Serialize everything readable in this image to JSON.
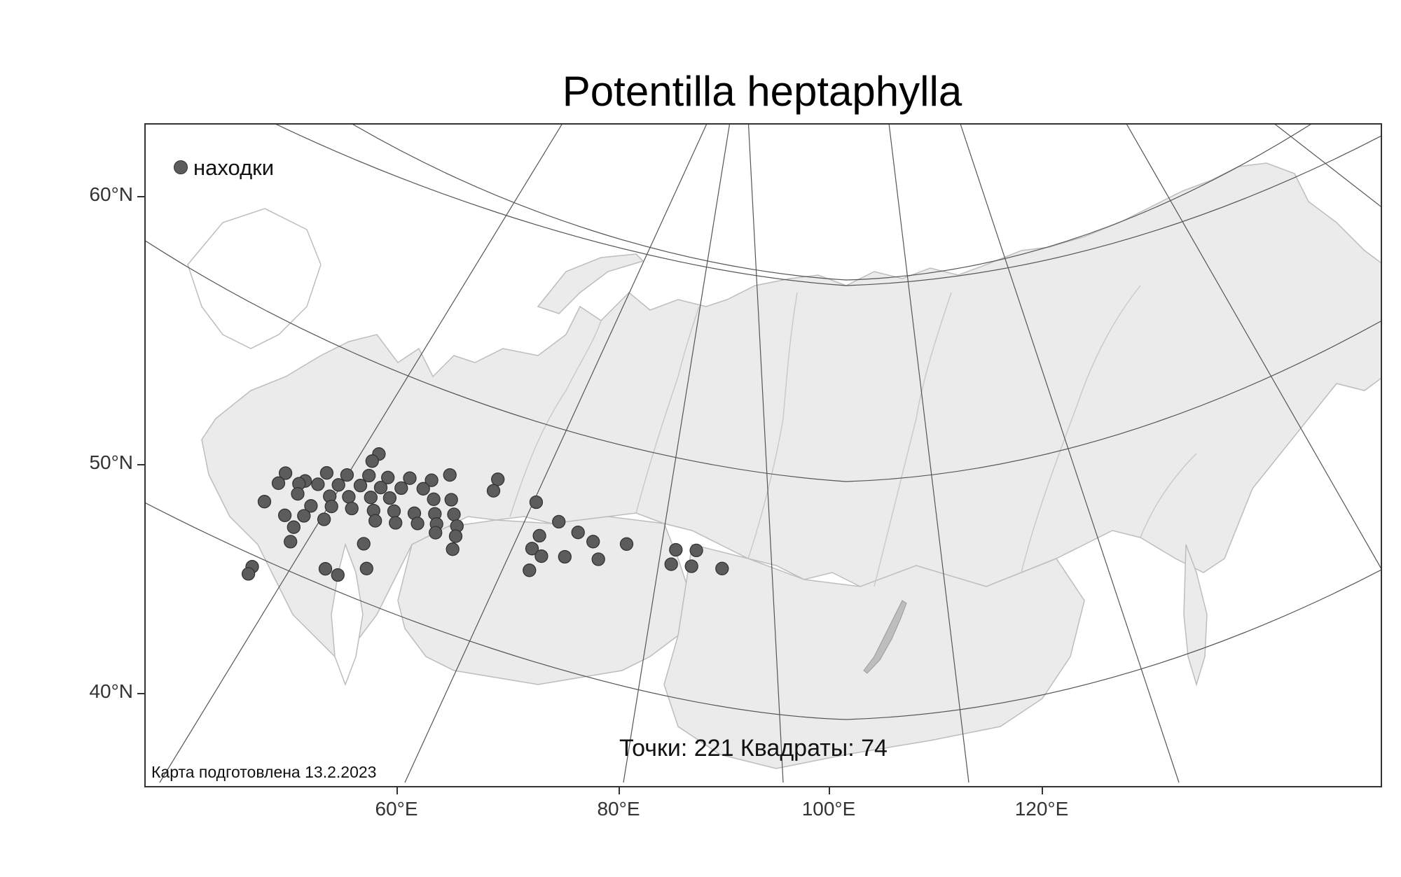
{
  "title": "Potentilla heptaphylla",
  "legend": {
    "marker_color": "#5c5c5c",
    "label": "находки"
  },
  "stats": "Точки: 221 Квадраты: 74",
  "credit": "Карта подготовлена 13.2.2023",
  "axes": {
    "lat_labels": [
      "60°N",
      "50°N",
      "40°N"
    ],
    "lon_labels": [
      "60°E",
      "80°E",
      "100°E",
      "120°E"
    ]
  },
  "colors": {
    "land": "#ebebeb",
    "coast": "#bdbdbd",
    "graticule": "#555555",
    "points": "#5c5c5c"
  },
  "occurrences": [
    {
      "lat": 56.0,
      "lon": 48.2
    },
    {
      "lat": 55.5,
      "lon": 47.8
    },
    {
      "lat": 54.5,
      "lon": 42.0
    },
    {
      "lat": 54.0,
      "lon": 43.4
    },
    {
      "lat": 54.6,
      "lon": 44.8
    },
    {
      "lat": 54.5,
      "lon": 46.2
    },
    {
      "lat": 54.5,
      "lon": 47.7
    },
    {
      "lat": 54.4,
      "lon": 49.0
    },
    {
      "lat": 54.4,
      "lon": 50.5
    },
    {
      "lat": 54.3,
      "lon": 52.0
    },
    {
      "lat": 54.7,
      "lon": 53.2
    },
    {
      "lat": 54.5,
      "lon": 56.5
    },
    {
      "lat": 53.8,
      "lon": 41.6
    },
    {
      "lat": 53.8,
      "lon": 43.0
    },
    {
      "lat": 53.8,
      "lon": 44.3
    },
    {
      "lat": 53.8,
      "lon": 45.7
    },
    {
      "lat": 53.8,
      "lon": 47.2
    },
    {
      "lat": 53.7,
      "lon": 48.6
    },
    {
      "lat": 53.7,
      "lon": 50.0
    },
    {
      "lat": 53.7,
      "lon": 51.5
    },
    {
      "lat": 53.7,
      "lon": 56.3
    },
    {
      "lat": 53.1,
      "lon": 43.0
    },
    {
      "lat": 53.0,
      "lon": 45.2
    },
    {
      "lat": 53.0,
      "lon": 46.5
    },
    {
      "lat": 53.0,
      "lon": 48.0
    },
    {
      "lat": 53.0,
      "lon": 49.3
    },
    {
      "lat": 53.0,
      "lon": 52.3
    },
    {
      "lat": 53.0,
      "lon": 53.5
    },
    {
      "lat": 53.0,
      "lon": 59.3
    },
    {
      "lat": 52.5,
      "lon": 40.8
    },
    {
      "lat": 52.3,
      "lon": 44.0
    },
    {
      "lat": 52.3,
      "lon": 45.4
    },
    {
      "lat": 52.2,
      "lon": 46.8
    },
    {
      "lat": 52.1,
      "lon": 48.3
    },
    {
      "lat": 52.1,
      "lon": 49.7
    },
    {
      "lat": 52.0,
      "lon": 51.1
    },
    {
      "lat": 52.0,
      "lon": 52.5
    },
    {
      "lat": 52.0,
      "lon": 53.8
    },
    {
      "lat": 51.6,
      "lon": 42.3
    },
    {
      "lat": 51.6,
      "lon": 43.6
    },
    {
      "lat": 51.4,
      "lon": 45.0
    },
    {
      "lat": 51.4,
      "lon": 48.5
    },
    {
      "lat": 51.3,
      "lon": 49.9
    },
    {
      "lat": 51.3,
      "lon": 51.4
    },
    {
      "lat": 51.3,
      "lon": 52.7
    },
    {
      "lat": 51.2,
      "lon": 54.1
    },
    {
      "lat": 51.7,
      "lon": 61.0
    },
    {
      "lat": 51.0,
      "lon": 62.4
    },
    {
      "lat": 50.8,
      "lon": 43.0
    },
    {
      "lat": 50.7,
      "lon": 52.7
    },
    {
      "lat": 50.5,
      "lon": 54.1
    },
    {
      "lat": 50.7,
      "lon": 59.8
    },
    {
      "lat": 50.4,
      "lon": 63.5
    },
    {
      "lat": 50.3,
      "lon": 65.8
    },
    {
      "lat": 50.0,
      "lon": 69.2
    },
    {
      "lat": 50.0,
      "lon": 70.6
    },
    {
      "lat": 49.8,
      "lon": 42.9
    },
    {
      "lat": 49.8,
      "lon": 47.9
    },
    {
      "lat": 49.6,
      "lon": 54.0
    },
    {
      "lat": 49.8,
      "lon": 59.4
    },
    {
      "lat": 49.3,
      "lon": 60.1
    },
    {
      "lat": 49.3,
      "lon": 61.7
    },
    {
      "lat": 49.2,
      "lon": 64.0
    },
    {
      "lat": 49.0,
      "lon": 69.0
    },
    {
      "lat": 48.9,
      "lon": 70.4
    },
    {
      "lat": 48.8,
      "lon": 72.5
    },
    {
      "lat": 48.3,
      "lon": 59.4
    },
    {
      "lat": 48.0,
      "lon": 40.5
    },
    {
      "lat": 48.0,
      "lon": 45.5
    },
    {
      "lat": 48.1,
      "lon": 48.3
    },
    {
      "lat": 47.5,
      "lon": 40.3
    },
    {
      "lat": 47.6,
      "lon": 46.4
    }
  ]
}
